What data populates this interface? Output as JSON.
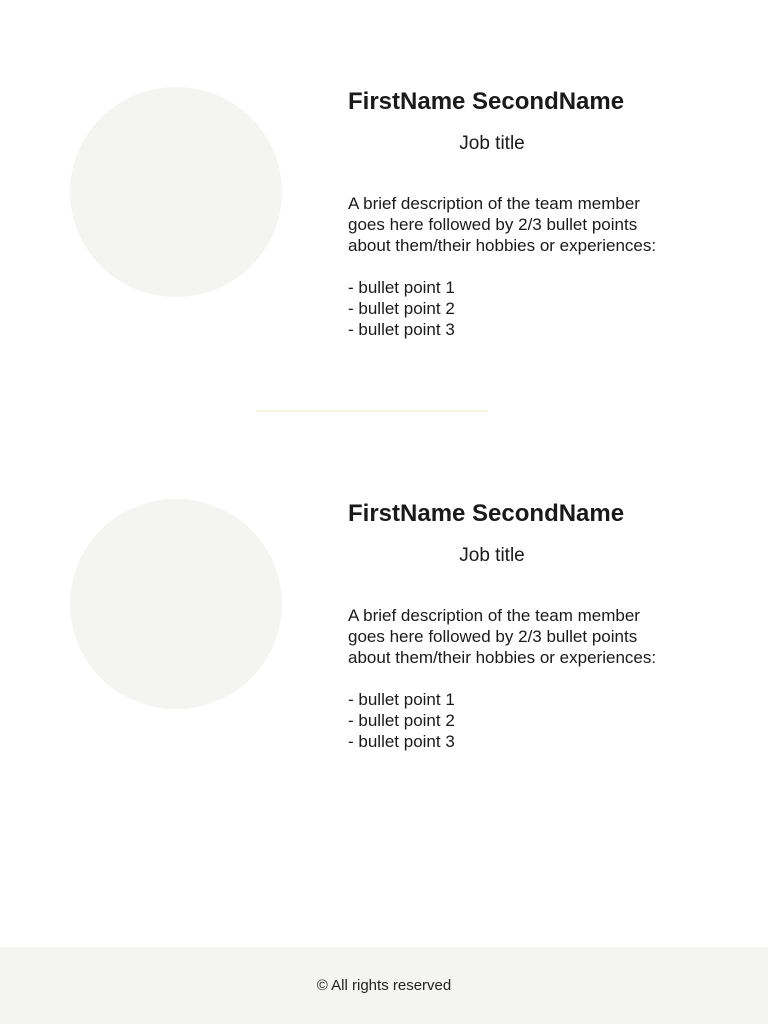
{
  "members": [
    {
      "name": "FirstName SecondName",
      "job_title": "Job title",
      "description_lines": [
        "A brief description of the team member",
        "goes here followed by 2/3 bullet points",
        "about them/their hobbies or experiences:"
      ],
      "bullets": [
        "- bullet point 1",
        "- bullet point 2",
        "- bullet point 3"
      ]
    },
    {
      "name": "FirstName SecondName",
      "job_title": "Job title",
      "description_lines": [
        "A brief description of the team member",
        "goes here followed by 2/3 bullet points",
        "about them/their hobbies or experiences:"
      ],
      "bullets": [
        "- bullet point 1",
        "- bullet point 2",
        "- bullet point 3"
      ]
    }
  ],
  "footer": {
    "copyright": "© All rights reserved"
  },
  "colors": {
    "avatar_placeholder": "#f4f4f3",
    "divider": "#f8f6df",
    "footer_background": "#f4f4f3"
  }
}
